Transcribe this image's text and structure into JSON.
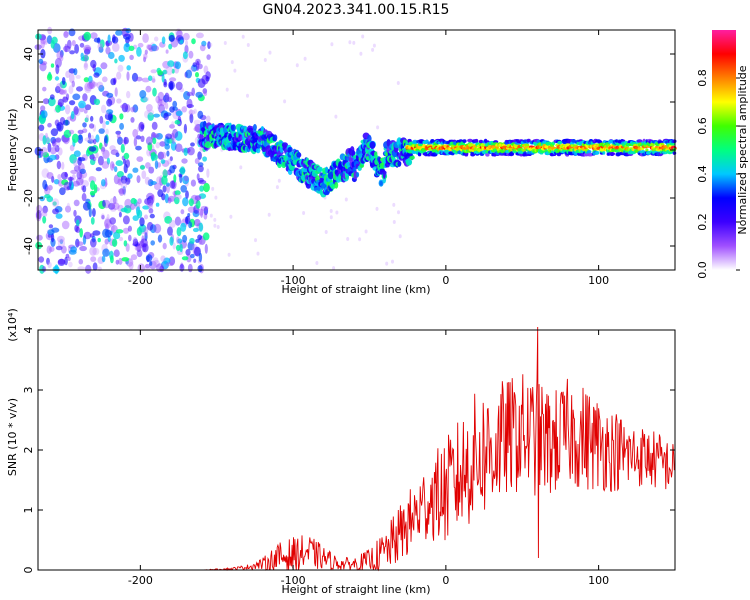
{
  "chart_data": [
    {
      "type": "heatmap",
      "title": "GN04.2023.341.00.15.R15",
      "xlabel": "Height of straight line (km)",
      "ylabel": "Frequency (Hz)",
      "xlim": [
        -267,
        150
      ],
      "ylim": [
        -50,
        50
      ],
      "xticks": [
        -200,
        -100,
        0,
        100
      ],
      "yticks": [
        -40,
        -20,
        0,
        20,
        40
      ],
      "colorbar": {
        "label": "Normalized spectral amplitude",
        "range": [
          0.0,
          1.0
        ],
        "ticks": [
          "0.0",
          "0.2",
          "0.4",
          "0.6",
          "0.8"
        ],
        "colors": [
          "#ffffff",
          "#a050ff",
          "#3c00ff",
          "#0000ff",
          "#00c8ff",
          "#00ff80",
          "#40ff00",
          "#ffff00",
          "#ff8000",
          "#ff0000",
          "#ff1ea0"
        ]
      },
      "features": [
        {
          "region": "x -267 to -155",
          "description": "scattered noise across all frequencies",
          "amplitude": 0.15
        },
        {
          "region": "x -155 to -25",
          "description": "band near 0 Hz wandering between +8 and -15 Hz",
          "amplitude": 0.35
        },
        {
          "region": "x -25 to 150",
          "description": "narrow band at ~+1 Hz",
          "amplitude": 0.8
        }
      ]
    },
    {
      "type": "line",
      "title": "",
      "xlabel": "Height of straight line (km)",
      "ylabel": "SNR (10 * v/v)",
      "yscale_label": "(x10⁴)",
      "xlim": [
        -267,
        150
      ],
      "ylim": [
        0,
        4
      ],
      "xticks": [
        -200,
        -100,
        0,
        100
      ],
      "yticks": [
        0,
        1,
        2,
        3,
        4
      ],
      "series": [
        {
          "color": "#e00000",
          "x": [
            -267,
            -240,
            -200,
            -160,
            -140,
            -130,
            -120,
            -110,
            -100,
            -90,
            -80,
            -70,
            -60,
            -50,
            -40,
            -30,
            -20,
            -10,
            0,
            10,
            20,
            30,
            40,
            50,
            60,
            70,
            80,
            90,
            100,
            110,
            120,
            130,
            140,
            150
          ],
          "y": [
            0.0,
            0.0,
            0.0,
            0.0,
            0.02,
            0.05,
            0.1,
            0.2,
            0.25,
            0.3,
            0.2,
            0.1,
            0.1,
            0.15,
            0.3,
            0.6,
            0.9,
            1.2,
            1.3,
            1.6,
            1.9,
            2.0,
            2.2,
            2.3,
            2.2,
            2.1,
            2.3,
            2.2,
            2.1,
            2.0,
            1.9,
            1.9,
            1.8,
            1.7
          ],
          "noise": [
            0,
            0,
            0,
            0,
            0.02,
            0.04,
            0.1,
            0.25,
            0.3,
            0.3,
            0.2,
            0.1,
            0.12,
            0.2,
            0.35,
            0.5,
            0.6,
            0.7,
            0.9,
            1.0,
            1.1,
            1.1,
            1.0,
            1.0,
            1.0,
            0.9,
            0.9,
            0.9,
            0.8,
            0.7,
            0.6,
            0.5,
            0.5,
            0.4
          ],
          "peak": {
            "x": 60,
            "y": 4.05
          }
        }
      ]
    }
  ]
}
